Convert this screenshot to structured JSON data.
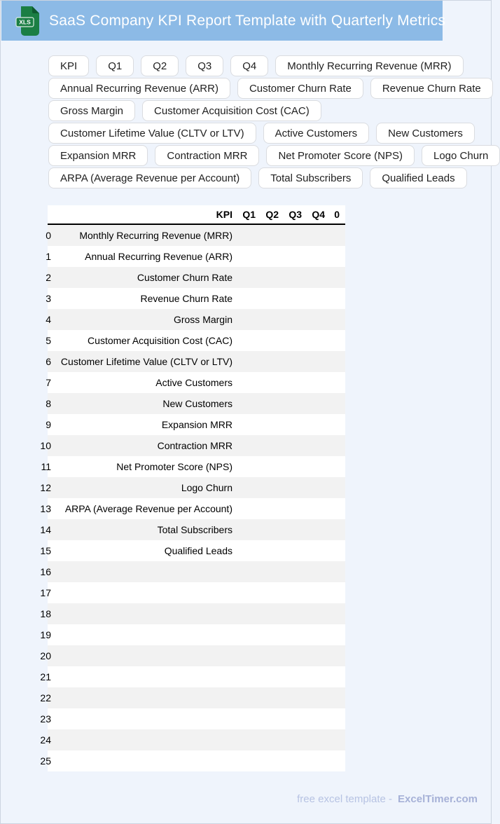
{
  "header": {
    "title": "SaaS Company KPI Report Template with Quarterly Metrics",
    "icon_label": "XLS",
    "band_color": "#8cbae6",
    "icon_green": "#1b7e44",
    "icon_fold_green": "#0e5a2f"
  },
  "chips": {
    "rows": [
      [
        "KPI",
        "Q1",
        "Q2",
        "Q3",
        "Q4",
        "Monthly Recurring Revenue (MRR)"
      ],
      [
        "Annual Recurring Revenue (ARR)",
        "Customer Churn Rate",
        "Revenue Churn Rate"
      ],
      [
        "Gross Margin",
        "Customer Acquisition Cost (CAC)"
      ],
      [
        "Customer Lifetime Value (CLTV or LTV)",
        "Active Customers",
        "New Customers"
      ],
      [
        "Expansion MRR",
        "Contraction MRR",
        "Net Promoter Score (NPS)",
        "Logo Churn"
      ],
      [
        "ARPA (Average Revenue per Account)",
        "Total Subscribers",
        "Qualified Leads"
      ]
    ]
  },
  "table": {
    "columns": [
      "KPI",
      "Q1",
      "Q2",
      "Q3",
      "Q4",
      "0"
    ],
    "stripe_color": "#f2f2f2",
    "rows": [
      {
        "index": "0",
        "kpi": "Monthly Recurring Revenue (MRR)"
      },
      {
        "index": "1",
        "kpi": "Annual Recurring Revenue (ARR)"
      },
      {
        "index": "2",
        "kpi": "Customer Churn Rate"
      },
      {
        "index": "3",
        "kpi": "Revenue Churn Rate"
      },
      {
        "index": "4",
        "kpi": "Gross Margin"
      },
      {
        "index": "5",
        "kpi": "Customer Acquisition Cost (CAC)"
      },
      {
        "index": "6",
        "kpi": "Customer Lifetime Value (CLTV or LTV)"
      },
      {
        "index": "7",
        "kpi": "Active Customers"
      },
      {
        "index": "8",
        "kpi": "New Customers"
      },
      {
        "index": "9",
        "kpi": "Expansion MRR"
      },
      {
        "index": "10",
        "kpi": "Contraction MRR"
      },
      {
        "index": "11",
        "kpi": "Net Promoter Score (NPS)"
      },
      {
        "index": "12",
        "kpi": "Logo Churn"
      },
      {
        "index": "13",
        "kpi": "ARPA (Average Revenue per Account)"
      },
      {
        "index": "14",
        "kpi": "Total Subscribers"
      },
      {
        "index": "15",
        "kpi": "Qualified Leads"
      },
      {
        "index": "16",
        "kpi": ""
      },
      {
        "index": "17",
        "kpi": ""
      },
      {
        "index": "18",
        "kpi": ""
      },
      {
        "index": "19",
        "kpi": ""
      },
      {
        "index": "20",
        "kpi": ""
      },
      {
        "index": "21",
        "kpi": ""
      },
      {
        "index": "22",
        "kpi": ""
      },
      {
        "index": "23",
        "kpi": ""
      },
      {
        "index": "24",
        "kpi": ""
      },
      {
        "index": "25",
        "kpi": ""
      }
    ]
  },
  "footer": {
    "text": "free excel template -",
    "brand": "ExcelTimer.com"
  }
}
